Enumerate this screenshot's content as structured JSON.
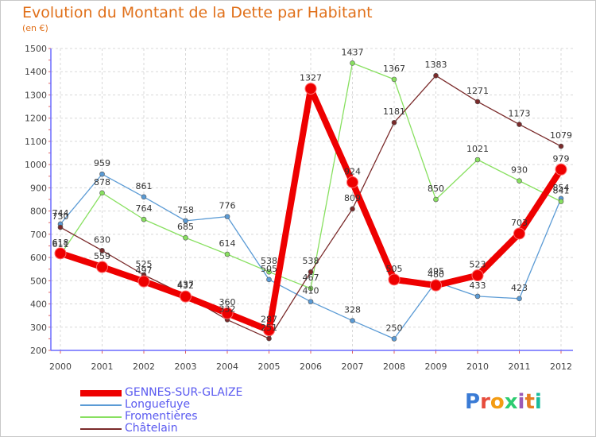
{
  "title": "Evolution du Montant de la Dette par Habitant",
  "subtitle": "(en €)",
  "logo": {
    "text": "Proxiti",
    "letter_colors": [
      "#3a7bd5",
      "#e74c3c",
      "#f39c12",
      "#2ecc71",
      "#9b59b6",
      "#e67e22",
      "#1abc9c"
    ]
  },
  "chart_data": {
    "type": "line",
    "x": [
      "2000",
      "2001",
      "2002",
      "2003",
      "2004",
      "2005",
      "2006",
      "2007",
      "2008",
      "2009",
      "2010",
      "2011",
      "2012"
    ],
    "ylim": [
      200,
      1500
    ],
    "yticks": [
      "200",
      "300",
      "400",
      "500",
      "600",
      "700",
      "800",
      "900",
      "1000",
      "1100",
      "1200",
      "1300",
      "1400",
      "1500"
    ],
    "grid": true,
    "legend_position": "bottom-left",
    "series": [
      {
        "name": "GENNES-SUR-GLAIZE",
        "color": "#ee0000",
        "values": [
          618,
          559,
          497,
          432,
          360,
          287,
          1327,
          924,
          505,
          480,
          523,
          703,
          979
        ],
        "labels": [
          "618",
          "559",
          "497",
          "432",
          "360",
          "287",
          "1327",
          "924",
          "505",
          "480",
          "523",
          "703",
          "979"
        ]
      },
      {
        "name": "Longuefuye",
        "color": "#5b9bd5",
        "values": [
          744,
          959,
          861,
          758,
          776,
          505,
          410,
          328,
          250,
          495,
          433,
          423,
          854
        ],
        "labels": [
          "744",
          "959",
          "861",
          "758",
          "776",
          "505",
          "410",
          "328",
          "250",
          "495",
          "433",
          "423",
          "854"
        ]
      },
      {
        "name": "Fromentières",
        "color": "#88e060",
        "values": [
          611,
          878,
          764,
          685,
          614,
          538,
          467,
          1437,
          1367,
          850,
          1021,
          930,
          841
        ],
        "labels": [
          "611",
          "878",
          "764",
          "685",
          "614",
          "538",
          "467",
          "1437",
          "1367",
          "850",
          "1021",
          "930",
          "841"
        ]
      },
      {
        "name": "Châtelain",
        "color": "#7a2a2a",
        "values": [
          730,
          630,
          525,
          437,
          332,
          251,
          538,
          809,
          1181,
          1383,
          1271,
          1173,
          1079
        ],
        "labels": [
          "730",
          "630",
          "525",
          "437",
          "332",
          "251",
          "538",
          "809",
          "1181",
          "1383",
          "1271",
          "1173",
          "1079"
        ]
      }
    ]
  }
}
